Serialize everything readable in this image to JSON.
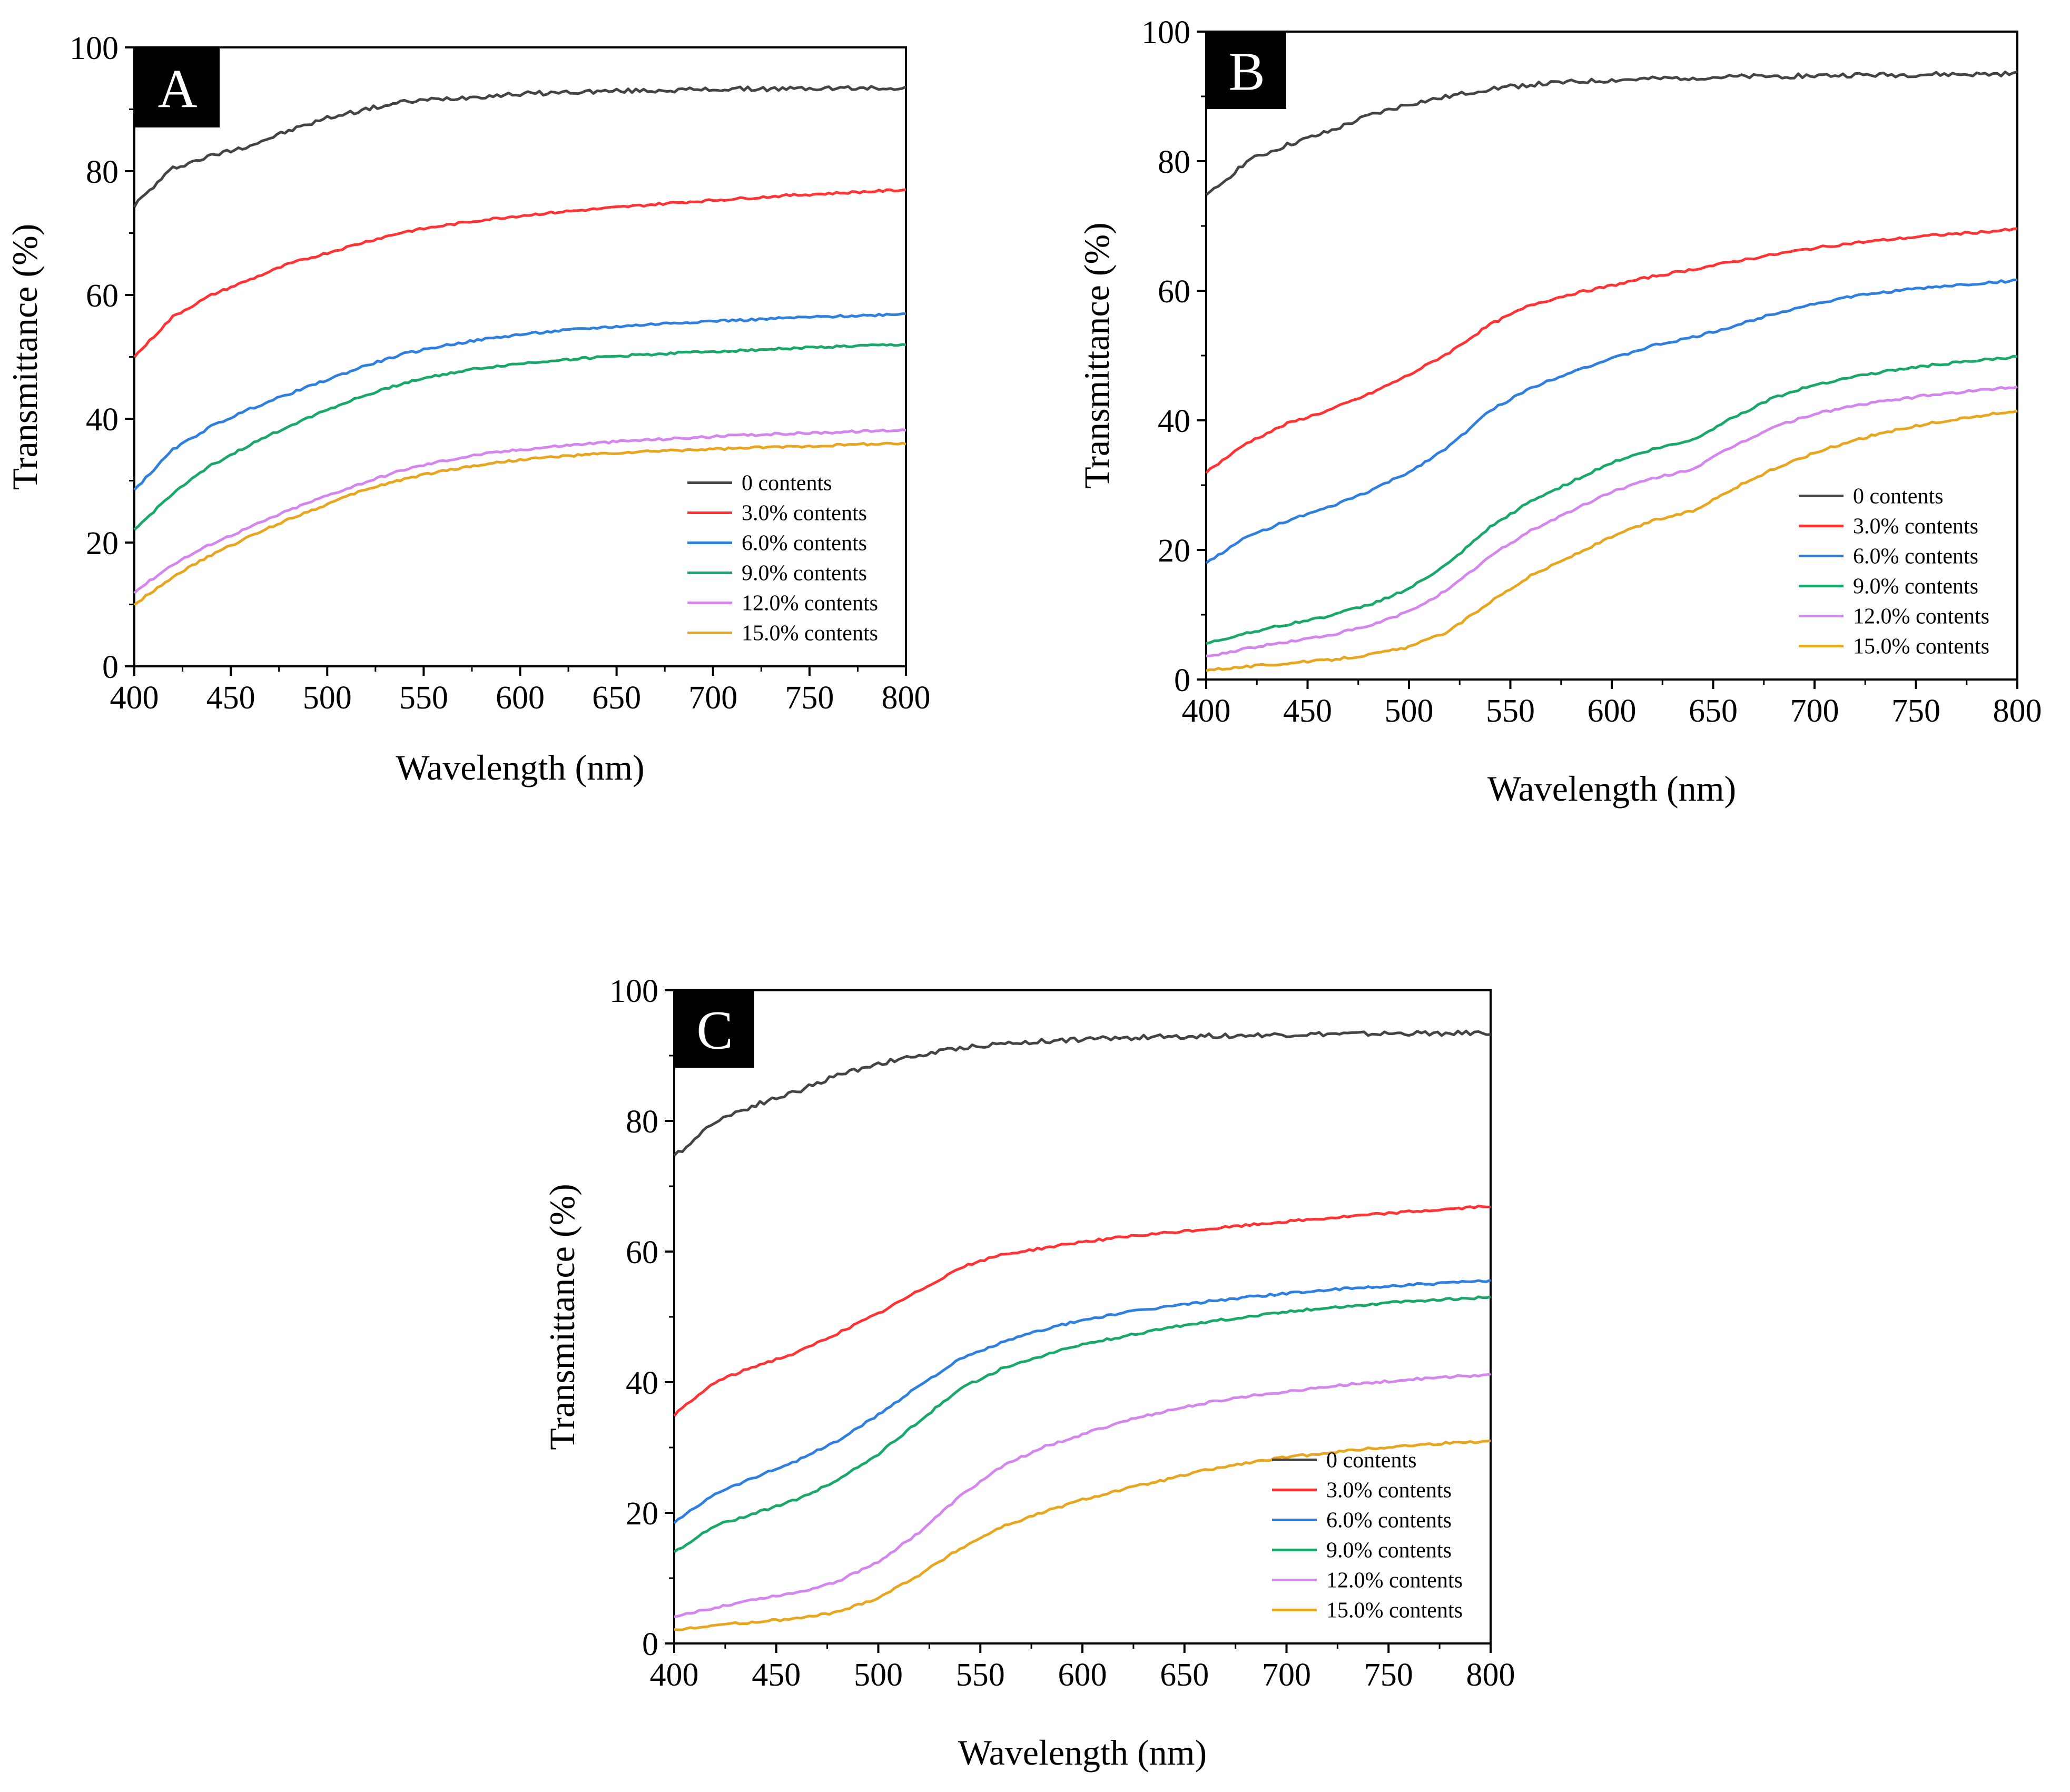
{
  "chart_data": [
    {
      "type": "line",
      "title": "",
      "panel_label": "A",
      "xlabel": "Wavelength (nm)",
      "ylabel": "Transmittance (%)",
      "xlim": [
        400,
        800
      ],
      "ylim": [
        0,
        100
      ],
      "xticks": [
        400,
        450,
        500,
        550,
        600,
        650,
        700,
        750,
        800
      ],
      "yticks": [
        0,
        20,
        40,
        60,
        80,
        100
      ],
      "legend_position": "lower-right",
      "grid": false,
      "x": [
        400,
        420,
        440,
        460,
        480,
        500,
        520,
        540,
        560,
        580,
        600,
        620,
        640,
        660,
        680,
        700,
        720,
        740,
        760,
        780,
        800
      ],
      "series": [
        {
          "name": "0 contents",
          "color": "#444444",
          "values": [
            74.5,
            80.5,
            82.5,
            84.2,
            86.5,
            88.6,
            90.0,
            91.2,
            91.7,
            92.1,
            92.5,
            92.7,
            92.9,
            93.0,
            93.1,
            93.2,
            93.3,
            93.3,
            93.4,
            93.4,
            93.5
          ]
        },
        {
          "name": "3.0% contents",
          "color": "#ff3333",
          "values": [
            50.0,
            56.5,
            60.0,
            62.5,
            65.0,
            66.8,
            68.6,
            70.2,
            71.2,
            72.1,
            72.8,
            73.4,
            73.9,
            74.4,
            74.9,
            75.3,
            75.7,
            76.1,
            76.4,
            76.7,
            77.0
          ]
        },
        {
          "name": "6.0% contents",
          "color": "#2f7fe0",
          "values": [
            28.5,
            35.0,
            38.8,
            41.6,
            44.0,
            46.3,
            48.6,
            50.5,
            51.8,
            52.8,
            53.6,
            54.2,
            54.7,
            55.1,
            55.5,
            55.8,
            56.0,
            56.3,
            56.5,
            56.7,
            57.0
          ]
        },
        {
          "name": "9.0% contents",
          "color": "#1aa86a",
          "values": [
            22.0,
            28.0,
            32.5,
            35.8,
            38.8,
            41.5,
            43.8,
            45.8,
            47.2,
            48.2,
            48.9,
            49.5,
            49.9,
            50.3,
            50.6,
            50.9,
            51.1,
            51.4,
            51.6,
            51.8,
            52.0
          ]
        },
        {
          "name": "12.0% contents",
          "color": "#d486ee",
          "values": [
            12.0,
            16.5,
            19.8,
            22.5,
            25.2,
            27.6,
            29.8,
            31.8,
            33.2,
            34.3,
            35.0,
            35.6,
            36.1,
            36.5,
            36.8,
            37.1,
            37.4,
            37.6,
            37.8,
            38.0,
            38.2
          ]
        },
        {
          "name": "15.0% contents",
          "color": "#e8a620",
          "values": [
            10.0,
            14.5,
            18.0,
            21.0,
            23.8,
            26.2,
            28.6,
            30.3,
            31.6,
            32.6,
            33.4,
            33.9,
            34.3,
            34.6,
            34.9,
            35.1,
            35.3,
            35.5,
            35.7,
            35.9,
            36.0
          ]
        }
      ]
    },
    {
      "type": "line",
      "title": "",
      "panel_label": "B",
      "xlabel": "Wavelength (nm)",
      "ylabel": "Transmittance (%)",
      "xlim": [
        400,
        800
      ],
      "ylim": [
        0,
        100
      ],
      "xticks": [
        400,
        450,
        500,
        550,
        600,
        650,
        700,
        750,
        800
      ],
      "yticks": [
        0,
        20,
        40,
        60,
        80,
        100
      ],
      "legend_position": "lower-right",
      "grid": false,
      "x": [
        400,
        420,
        440,
        460,
        480,
        500,
        520,
        540,
        560,
        580,
        600,
        620,
        640,
        660,
        680,
        700,
        720,
        740,
        760,
        780,
        800
      ],
      "series": [
        {
          "name": "0 contents",
          "color": "#444444",
          "values": [
            74.5,
            80.0,
            82.5,
            84.5,
            87.0,
            88.8,
            90.0,
            91.2,
            91.8,
            92.2,
            92.5,
            92.7,
            92.9,
            93.0,
            93.1,
            93.2,
            93.3,
            93.3,
            93.4,
            93.4,
            93.5
          ]
        },
        {
          "name": "3.0% contents",
          "color": "#ff3333",
          "values": [
            32.0,
            36.5,
            39.5,
            41.5,
            44.0,
            47.0,
            50.5,
            54.8,
            57.8,
            59.5,
            60.8,
            62.2,
            63.3,
            64.5,
            65.6,
            66.6,
            67.4,
            68.0,
            68.6,
            69.0,
            69.5
          ]
        },
        {
          "name": "6.0% contents",
          "color": "#2f7fe0",
          "values": [
            18.0,
            22.0,
            24.5,
            26.5,
            29.0,
            32.0,
            36.0,
            41.5,
            45.0,
            47.5,
            49.5,
            51.5,
            52.8,
            54.5,
            56.5,
            58.0,
            59.2,
            60.0,
            60.6,
            61.1,
            61.6
          ]
        },
        {
          "name": "9.0% contents",
          "color": "#1aa86a",
          "values": [
            5.5,
            7.2,
            8.5,
            9.8,
            11.5,
            14.0,
            18.0,
            23.5,
            27.5,
            30.5,
            33.5,
            35.5,
            37.0,
            40.5,
            43.5,
            45.5,
            46.8,
            47.8,
            48.6,
            49.2,
            49.8
          ]
        },
        {
          "name": "12.0% contents",
          "color": "#d486ee",
          "values": [
            3.5,
            4.8,
            5.8,
            6.8,
            8.2,
            10.5,
            14.0,
            19.0,
            23.0,
            26.0,
            29.0,
            31.0,
            32.5,
            36.0,
            39.0,
            41.0,
            42.3,
            43.2,
            44.0,
            44.6,
            45.2
          ]
        },
        {
          "name": "15.0% contents",
          "color": "#e8a620",
          "values": [
            1.5,
            2.0,
            2.5,
            3.0,
            3.8,
            5.0,
            7.5,
            12.0,
            16.0,
            19.0,
            22.0,
            24.5,
            26.0,
            29.5,
            32.5,
            35.0,
            37.0,
            38.5,
            39.7,
            40.6,
            41.5
          ]
        }
      ]
    },
    {
      "type": "line",
      "title": "",
      "panel_label": "C",
      "xlabel": "Wavelength (nm)",
      "ylabel": "Transmittance (%)",
      "xlim": [
        400,
        800
      ],
      "ylim": [
        0,
        100
      ],
      "xticks": [
        400,
        450,
        500,
        550,
        600,
        650,
        700,
        750,
        800
      ],
      "yticks": [
        0,
        20,
        40,
        60,
        80,
        100
      ],
      "legend_position": "lower-right",
      "grid": false,
      "x": [
        400,
        420,
        440,
        460,
        480,
        500,
        520,
        540,
        560,
        580,
        600,
        620,
        640,
        660,
        680,
        700,
        720,
        740,
        760,
        780,
        800
      ],
      "series": [
        {
          "name": "0 contents",
          "color": "#444444",
          "values": [
            74.5,
            80.0,
            82.5,
            84.5,
            87.0,
            88.8,
            90.0,
            91.2,
            91.8,
            92.2,
            92.5,
            92.7,
            92.9,
            93.0,
            93.1,
            93.2,
            93.3,
            93.3,
            93.4,
            93.4,
            93.5
          ]
        },
        {
          "name": "3.0% contents",
          "color": "#ff3333",
          "values": [
            35.0,
            40.0,
            42.5,
            44.5,
            47.5,
            50.5,
            54.0,
            57.5,
            59.5,
            60.5,
            61.5,
            62.2,
            62.8,
            63.4,
            64.0,
            64.6,
            65.1,
            65.6,
            66.1,
            66.5,
            67.0
          ]
        },
        {
          "name": "6.0% contents",
          "color": "#2f7fe0",
          "values": [
            18.5,
            23.0,
            25.5,
            28.0,
            31.0,
            35.0,
            39.5,
            43.5,
            46.0,
            48.0,
            49.5,
            50.6,
            51.5,
            52.3,
            53.0,
            53.6,
            54.1,
            54.5,
            54.9,
            55.2,
            55.5
          ]
        },
        {
          "name": "9.0% contents",
          "color": "#1aa86a",
          "values": [
            14.0,
            18.0,
            20.0,
            22.0,
            25.0,
            29.0,
            34.0,
            39.0,
            42.0,
            44.0,
            45.8,
            47.0,
            48.2,
            49.2,
            50.0,
            50.8,
            51.4,
            51.9,
            52.4,
            52.7,
            53.0
          ]
        },
        {
          "name": "12.0% contents",
          "color": "#d486ee",
          "values": [
            4.0,
            5.5,
            6.8,
            7.8,
            9.5,
            12.5,
            17.0,
            22.5,
            27.0,
            30.0,
            32.0,
            34.0,
            35.5,
            36.8,
            37.8,
            38.6,
            39.3,
            39.9,
            40.4,
            40.8,
            41.2
          ]
        },
        {
          "name": "15.0% contents",
          "color": "#e8a620",
          "values": [
            2.0,
            2.8,
            3.3,
            3.8,
            4.8,
            7.0,
            10.5,
            14.5,
            17.8,
            20.0,
            22.0,
            23.6,
            25.0,
            26.5,
            27.6,
            28.5,
            29.2,
            29.8,
            30.3,
            30.7,
            31.0
          ]
        }
      ]
    }
  ]
}
